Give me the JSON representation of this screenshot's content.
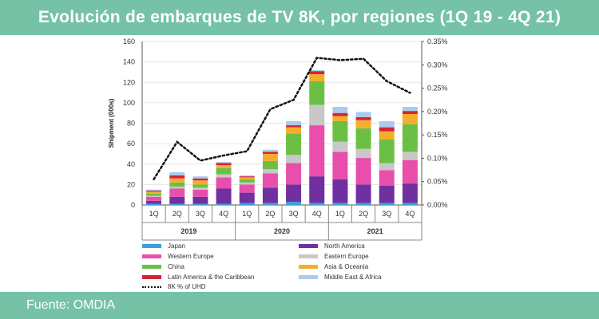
{
  "header": {
    "title": "Evolución de embarques de TV 8K, por regiones (1Q 19 - 4Q 21)"
  },
  "footer": {
    "source": "Fuente: OMDIA"
  },
  "chart_data": {
    "type": "bar",
    "stacked": true,
    "categories": [
      "1Q",
      "2Q",
      "3Q",
      "4Q",
      "1Q",
      "2Q",
      "3Q",
      "4Q",
      "1Q",
      "2Q",
      "3Q",
      "4Q"
    ],
    "groups": [
      {
        "label": "2019",
        "quarters": 4
      },
      {
        "label": "2020",
        "quarters": 4
      },
      {
        "label": "2021",
        "quarters": 4
      }
    ],
    "ylabel": "Shipment (000s)",
    "ylim": [
      0,
      160
    ],
    "yticks": [
      0,
      20,
      40,
      60,
      80,
      100,
      120,
      140,
      160
    ],
    "y2lim": [
      0,
      0.35
    ],
    "y2ticks": [
      "0.00%",
      "0.05%",
      "0.10%",
      "0.15%",
      "0.20%",
      "0.25%",
      "0.30%",
      "0.35%"
    ],
    "legend_position": "bottom",
    "series": [
      {
        "name": "Japan",
        "color": "#3aa0dc",
        "values": [
          1,
          1,
          1,
          1,
          2,
          2,
          3,
          2,
          2,
          2,
          2,
          2
        ]
      },
      {
        "name": "North America",
        "color": "#7030a0",
        "values": [
          3,
          7,
          7,
          15,
          10,
          15,
          17,
          26,
          23,
          18,
          17,
          19
        ]
      },
      {
        "name": "Western Europe",
        "color": "#e84fac",
        "values": [
          4,
          8,
          7,
          11,
          8,
          14,
          21,
          50,
          27,
          26,
          15,
          23
        ]
      },
      {
        "name": "Eastern Europe",
        "color": "#c8c8c8",
        "values": [
          1,
          2,
          2,
          3,
          2,
          4,
          8,
          20,
          10,
          9,
          7,
          8
        ]
      },
      {
        "name": "China",
        "color": "#6bbf45",
        "values": [
          2,
          4,
          3,
          6,
          3,
          8,
          21,
          23,
          20,
          20,
          23,
          27
        ]
      },
      {
        "name": "Asia & Oceania",
        "color": "#f5ad2d",
        "values": [
          2,
          4,
          4,
          3,
          2,
          7,
          6,
          7,
          5,
          8,
          8,
          10
        ]
      },
      {
        "name": "Latin America & the Caribbean",
        "color": "#d62236",
        "values": [
          1,
          3,
          2,
          2,
          1,
          2,
          2,
          3,
          3,
          3,
          4,
          3
        ]
      },
      {
        "name": "Middle East & Africa",
        "color": "#aacbee",
        "values": [
          1,
          3,
          2,
          1,
          1,
          2,
          4,
          1,
          6,
          5,
          6,
          4
        ]
      }
    ],
    "line_series": {
      "name": "8K % of UHD",
      "style": "dotted",
      "color": "#111111",
      "values": [
        0.055,
        0.135,
        0.095,
        0.106,
        0.115,
        0.205,
        0.225,
        0.315,
        0.31,
        0.313,
        0.265,
        0.24
      ]
    }
  }
}
